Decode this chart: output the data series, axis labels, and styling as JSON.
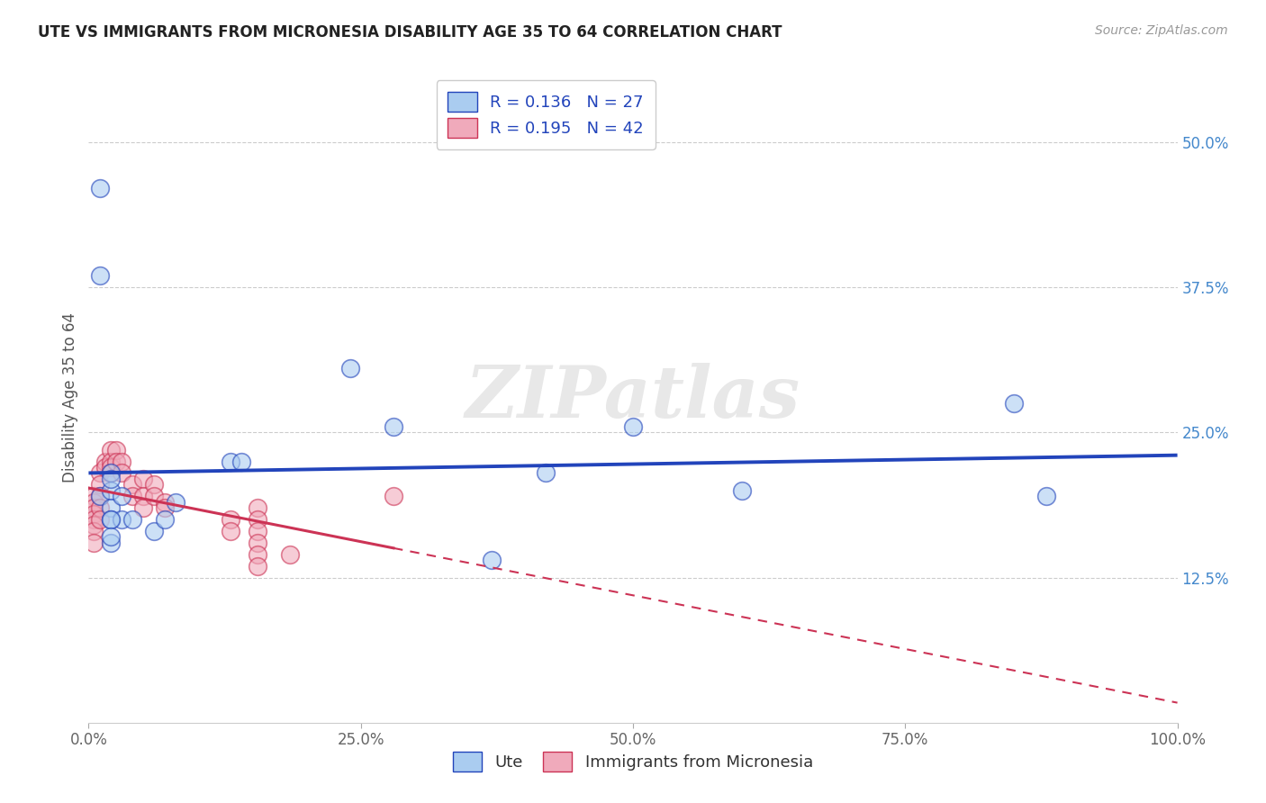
{
  "title": "UTE VS IMMIGRANTS FROM MICRONESIA DISABILITY AGE 35 TO 64 CORRELATION CHART",
  "source": "Source: ZipAtlas.com",
  "ylabel": "Disability Age 35 to 64",
  "y_ticks": [
    0.125,
    0.25,
    0.375,
    0.5
  ],
  "y_tick_labels": [
    "12.5%",
    "25.0%",
    "37.5%",
    "50.0%"
  ],
  "x_ticks": [
    0.0,
    0.25,
    0.5,
    0.75,
    1.0
  ],
  "x_tick_labels": [
    "0.0%",
    "25.0%",
    "50.0%",
    "75.0%",
    "100.0%"
  ],
  "xlim": [
    0.0,
    1.0
  ],
  "ylim": [
    0.0,
    0.56
  ],
  "ute_R": 0.136,
  "ute_N": 27,
  "micronesia_R": 0.195,
  "micronesia_N": 42,
  "ute_color": "#aaccf0",
  "micronesia_color": "#f0aabb",
  "ute_line_color": "#2244bb",
  "micronesia_line_color": "#cc3355",
  "ute_x": [
    0.01,
    0.01,
    0.01,
    0.02,
    0.02,
    0.02,
    0.02,
    0.02,
    0.03,
    0.03,
    0.06,
    0.07,
    0.08,
    0.13,
    0.14,
    0.24,
    0.28,
    0.37,
    0.42,
    0.5,
    0.6,
    0.85,
    0.88,
    0.02,
    0.02,
    0.02,
    0.04
  ],
  "ute_y": [
    0.46,
    0.385,
    0.195,
    0.215,
    0.2,
    0.185,
    0.175,
    0.155,
    0.195,
    0.175,
    0.165,
    0.175,
    0.19,
    0.225,
    0.225,
    0.305,
    0.255,
    0.14,
    0.215,
    0.255,
    0.2,
    0.275,
    0.195,
    0.21,
    0.175,
    0.16,
    0.175
  ],
  "micronesia_x": [
    0.005,
    0.005,
    0.005,
    0.005,
    0.005,
    0.005,
    0.005,
    0.005,
    0.01,
    0.01,
    0.01,
    0.01,
    0.01,
    0.015,
    0.015,
    0.02,
    0.02,
    0.02,
    0.02,
    0.025,
    0.025,
    0.03,
    0.03,
    0.04,
    0.04,
    0.05,
    0.05,
    0.05,
    0.06,
    0.06,
    0.07,
    0.07,
    0.13,
    0.13,
    0.155,
    0.155,
    0.155,
    0.155,
    0.155,
    0.155,
    0.185,
    0.28
  ],
  "micronesia_y": [
    0.195,
    0.19,
    0.185,
    0.18,
    0.175,
    0.17,
    0.165,
    0.155,
    0.215,
    0.205,
    0.195,
    0.185,
    0.175,
    0.225,
    0.22,
    0.235,
    0.225,
    0.22,
    0.215,
    0.235,
    0.225,
    0.225,
    0.215,
    0.205,
    0.195,
    0.21,
    0.195,
    0.185,
    0.205,
    0.195,
    0.19,
    0.185,
    0.175,
    0.165,
    0.185,
    0.175,
    0.165,
    0.155,
    0.145,
    0.135,
    0.145,
    0.195
  ],
  "watermark": "ZIPatlas",
  "background_color": "#ffffff",
  "grid_color": "#cccccc"
}
